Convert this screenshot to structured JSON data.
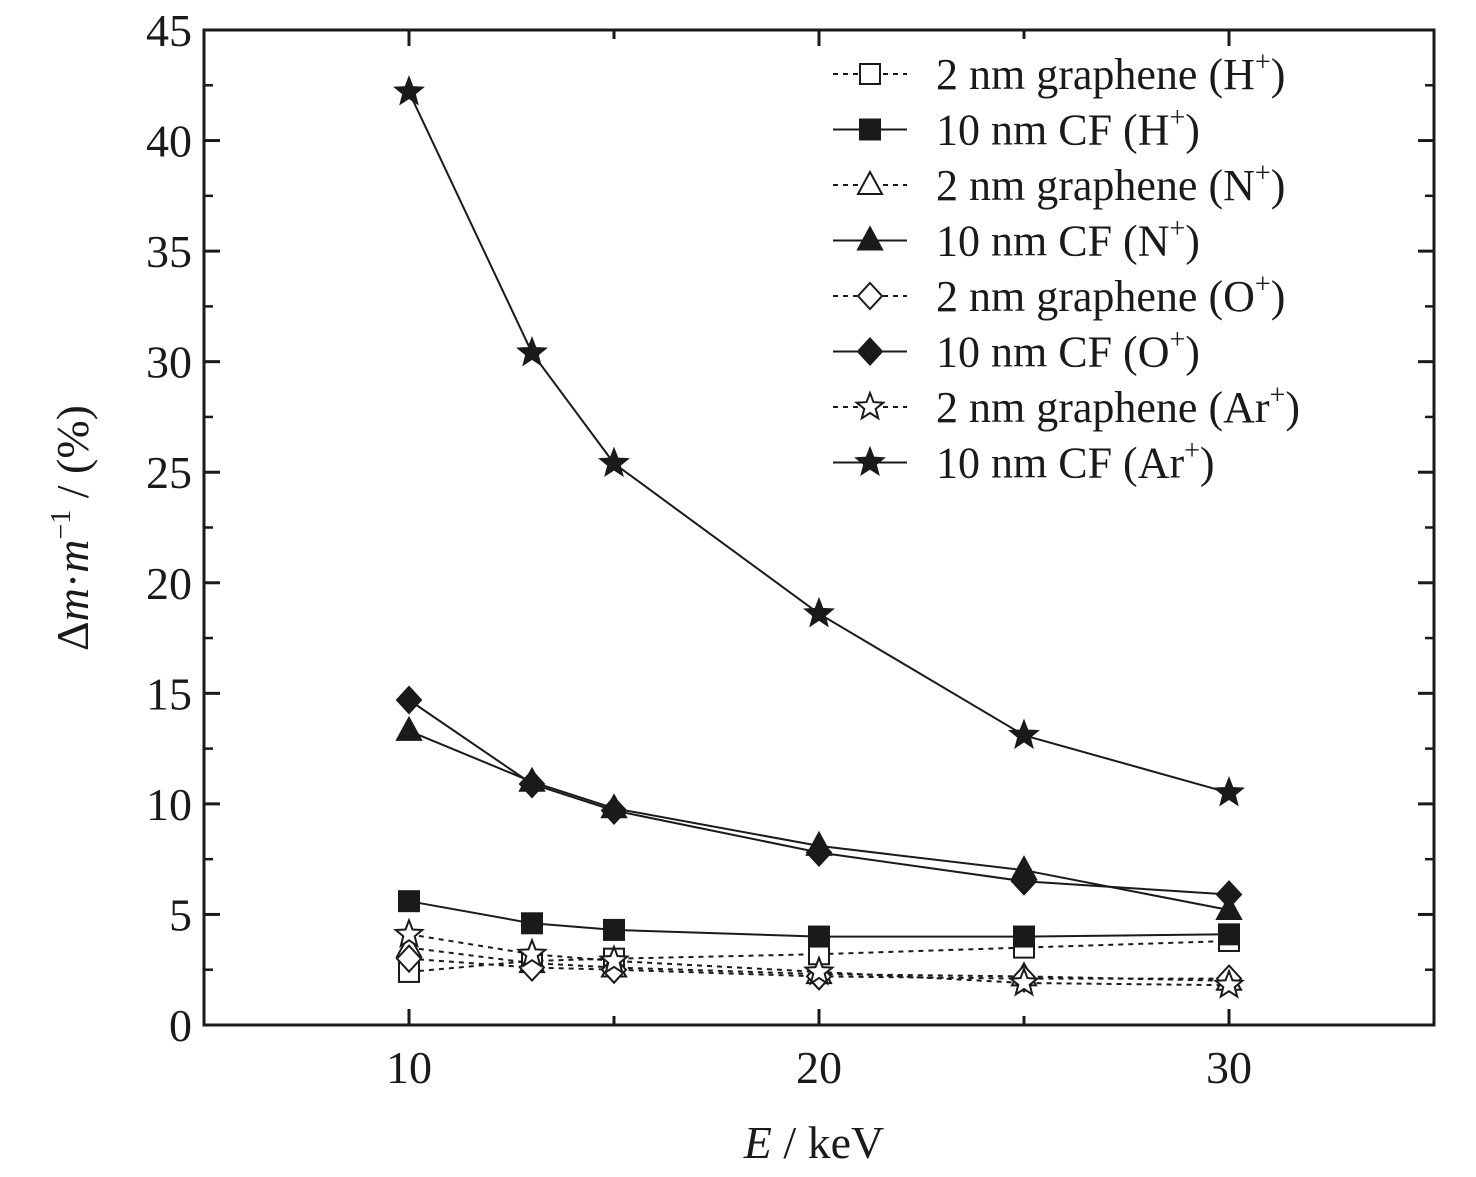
{
  "chart_data": {
    "type": "line",
    "xlabel_var": "E",
    "xlabel_unit": " / keV",
    "ylabel_prefix": "Δ",
    "ylabel_m1": "m",
    "ylabel_dot": "·",
    "ylabel_m2": "m",
    "ylabel_exp": "−1",
    "ylabel_unit": " / (%)",
    "xlim": [
      5,
      35
    ],
    "ylim": [
      0,
      45
    ],
    "xticks": [
      10,
      20,
      30
    ],
    "yticks": [
      0,
      5,
      10,
      15,
      20,
      25,
      30,
      35,
      40,
      45
    ],
    "x": [
      10,
      13,
      15,
      20,
      25,
      30
    ],
    "legend_position": "top-right",
    "series": [
      {
        "name": "2 nm graphene (H",
        "sup": "+",
        "close": ")",
        "marker": "square",
        "filled": false,
        "dashed": true,
        "values": [
          2.4,
          2.9,
          3.0,
          3.2,
          3.5,
          3.8
        ]
      },
      {
        "name": "10 nm CF (H",
        "sup": "+",
        "close": ")",
        "marker": "square",
        "filled": true,
        "dashed": false,
        "values": [
          5.6,
          4.6,
          4.3,
          4.0,
          4.0,
          4.1
        ]
      },
      {
        "name": "2 nm graphene (N",
        "sup": "+",
        "close": ")",
        "marker": "triangle",
        "filled": false,
        "dashed": true,
        "values": [
          3.5,
          2.8,
          2.6,
          2.3,
          2.2,
          2.0
        ]
      },
      {
        "name": "10 nm CF (N",
        "sup": "+",
        "close": ")",
        "marker": "triangle",
        "filled": true,
        "dashed": false,
        "values": [
          13.3,
          11.0,
          9.8,
          8.1,
          7.0,
          5.2
        ]
      },
      {
        "name": "2 nm graphene (O",
        "sup": "+",
        "close": ")",
        "marker": "diamond",
        "filled": false,
        "dashed": true,
        "values": [
          3.0,
          2.6,
          2.5,
          2.2,
          2.1,
          2.1
        ]
      },
      {
        "name": "10 nm CF (O",
        "sup": "+",
        "close": ")",
        "marker": "diamond",
        "filled": true,
        "dashed": false,
        "values": [
          14.7,
          10.9,
          9.7,
          7.8,
          6.5,
          5.9
        ]
      },
      {
        "name": "2 nm graphene (Ar",
        "sup": "+",
        "close": ")",
        "marker": "star",
        "filled": false,
        "dashed": true,
        "values": [
          4.1,
          3.2,
          2.9,
          2.4,
          1.9,
          1.8
        ]
      },
      {
        "name": "10 nm CF (Ar",
        "sup": "+",
        "close": ")",
        "marker": "star",
        "filled": true,
        "dashed": false,
        "values": [
          42.2,
          30.4,
          25.4,
          18.6,
          13.1,
          10.5
        ]
      }
    ]
  }
}
